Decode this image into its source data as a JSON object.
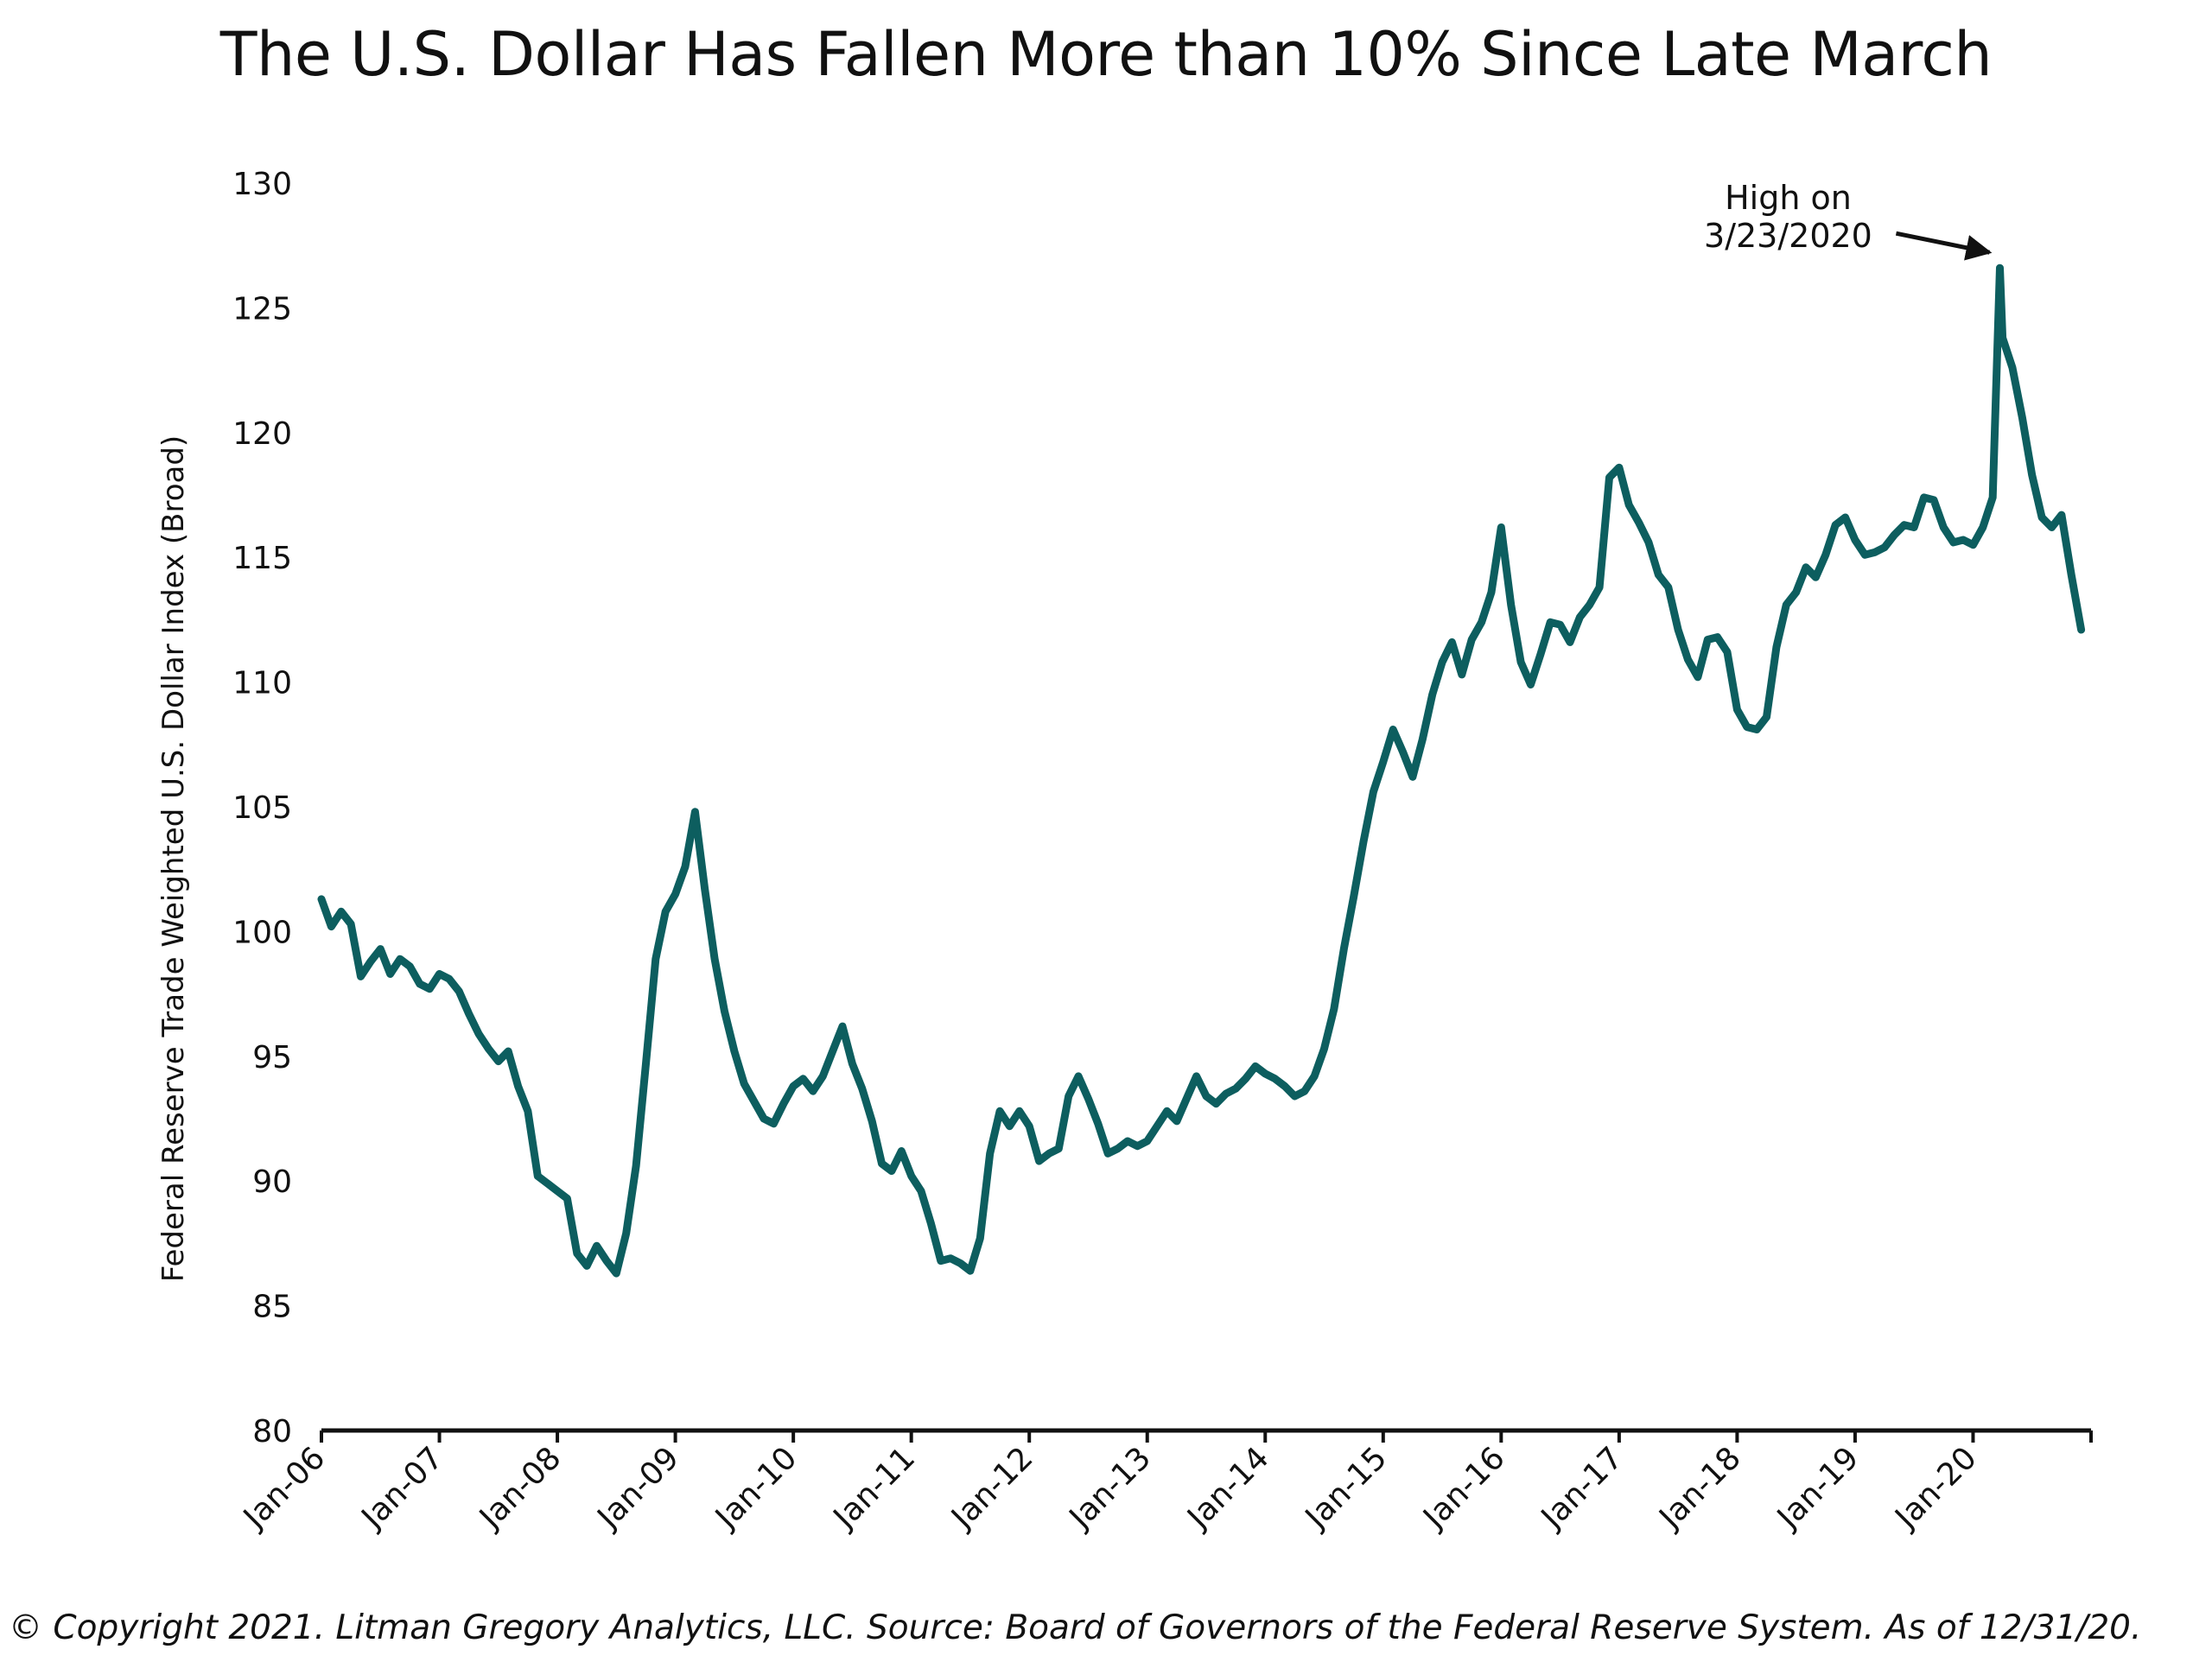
{
  "chart_data": {
    "type": "line",
    "title": "The U.S. Dollar Has Fallen More than 10% Since Late March",
    "ylabel": "Federal Reserve Trade Weighted U.S. Dollar Index (Broad)",
    "xlabel": "",
    "ylim": [
      80,
      130
    ],
    "yticks": [
      80,
      85,
      90,
      95,
      100,
      105,
      110,
      115,
      120,
      125,
      130
    ],
    "xlim": [
      "2006-01",
      "2021-01"
    ],
    "x_tick_labels": [
      "Jan-06",
      "Jan-07",
      "Jan-08",
      "Jan-09",
      "Jan-10",
      "Jan-11",
      "Jan-12",
      "Jan-13",
      "Jan-14",
      "Jan-15",
      "Jan-16",
      "Jan-17",
      "Jan-18",
      "Jan-19",
      "Jan-20"
    ],
    "x_tick_dates": [
      "2006-01",
      "2007-01",
      "2008-01",
      "2009-01",
      "2010-01",
      "2011-01",
      "2012-01",
      "2013-01",
      "2014-01",
      "2015-01",
      "2016-01",
      "2017-01",
      "2018-01",
      "2019-01",
      "2020-01",
      "2021-01"
    ],
    "grid": false,
    "legend": "none",
    "line_color": "#0d5e5f",
    "series": [
      {
        "x": [
          "2006-01",
          "2006-02",
          "2006-03",
          "2006-04",
          "2006-05",
          "2006-06",
          "2006-07",
          "2006-08",
          "2006-09",
          "2006-10",
          "2006-11",
          "2006-12",
          "2007-01",
          "2007-02",
          "2007-03",
          "2007-04",
          "2007-05",
          "2007-06",
          "2007-07",
          "2007-08",
          "2007-09",
          "2007-10",
          "2007-11",
          "2007-12",
          "2008-01",
          "2008-02",
          "2008-03",
          "2008-04",
          "2008-05",
          "2008-06",
          "2008-07",
          "2008-08",
          "2008-09",
          "2008-10",
          "2008-11",
          "2008-12",
          "2009-01",
          "2009-02",
          "2009-03",
          "2009-04",
          "2009-05",
          "2009-06",
          "2009-07",
          "2009-08",
          "2009-09",
          "2009-10",
          "2009-11",
          "2009-12",
          "2010-01",
          "2010-02",
          "2010-03",
          "2010-04",
          "2010-05",
          "2010-06",
          "2010-07",
          "2010-08",
          "2010-09",
          "2010-10",
          "2010-11",
          "2010-12",
          "2011-01",
          "2011-02",
          "2011-03",
          "2011-04",
          "2011-05",
          "2011-06",
          "2011-07",
          "2011-08",
          "2011-09",
          "2011-10",
          "2011-11",
          "2011-12",
          "2012-01",
          "2012-02",
          "2012-03",
          "2012-04",
          "2012-05",
          "2012-06",
          "2012-07",
          "2012-08",
          "2012-09",
          "2012-10",
          "2012-11",
          "2012-12",
          "2013-01",
          "2013-02",
          "2013-03",
          "2013-04",
          "2013-05",
          "2013-06",
          "2013-07",
          "2013-08",
          "2013-09",
          "2013-10",
          "2013-11",
          "2013-12",
          "2014-01",
          "2014-02",
          "2014-03",
          "2014-04",
          "2014-05",
          "2014-06",
          "2014-07",
          "2014-08",
          "2014-09",
          "2014-10",
          "2014-11",
          "2014-12",
          "2015-01",
          "2015-02",
          "2015-03",
          "2015-04",
          "2015-05",
          "2015-06",
          "2015-07",
          "2015-08",
          "2015-09",
          "2015-10",
          "2015-11",
          "2015-12",
          "2016-01",
          "2016-02",
          "2016-03",
          "2016-04",
          "2016-05",
          "2016-06",
          "2016-07",
          "2016-08",
          "2016-09",
          "2016-10",
          "2016-11",
          "2016-12",
          "2017-01",
          "2017-02",
          "2017-03",
          "2017-04",
          "2017-05",
          "2017-06",
          "2017-07",
          "2017-08",
          "2017-09",
          "2017-10",
          "2017-11",
          "2017-12",
          "2018-01",
          "2018-02",
          "2018-03",
          "2018-04",
          "2018-05",
          "2018-06",
          "2018-07",
          "2018-08",
          "2018-09",
          "2018-10",
          "2018-11",
          "2018-12",
          "2019-01",
          "2019-02",
          "2019-03",
          "2019-04",
          "2019-05",
          "2019-06",
          "2019-07",
          "2019-08",
          "2019-09",
          "2019-10",
          "2019-11",
          "2019-12",
          "2020-01",
          "2020-02",
          "2020-03",
          "2020-03-23",
          "2020-04",
          "2020-05",
          "2020-06",
          "2020-07",
          "2020-08",
          "2020-09",
          "2020-10",
          "2020-11",
          "2020-12"
        ],
        "y": [
          101.3,
          100.2,
          100.8,
          100.3,
          98.2,
          98.8,
          99.3,
          98.3,
          98.9,
          98.6,
          97.9,
          97.7,
          98.3,
          98.1,
          97.6,
          96.7,
          95.9,
          95.3,
          94.8,
          95.2,
          93.8,
          92.8,
          90.2,
          89.9,
          89.6,
          89.3,
          87.1,
          86.6,
          87.4,
          86.8,
          86.3,
          87.9,
          90.6,
          94.7,
          98.9,
          100.8,
          101.5,
          102.6,
          104.8,
          101.7,
          98.9,
          96.8,
          95.2,
          93.9,
          93.2,
          92.5,
          92.3,
          93.1,
          93.8,
          94.1,
          93.6,
          94.2,
          95.2,
          96.2,
          94.7,
          93.7,
          92.4,
          90.7,
          90.4,
          91.2,
          90.2,
          89.6,
          88.3,
          86.8,
          86.9,
          86.7,
          86.4,
          87.7,
          91.1,
          92.8,
          92.2,
          92.8,
          92.2,
          90.8,
          91.1,
          91.3,
          93.4,
          94.2,
          93.3,
          92.3,
          91.1,
          91.3,
          91.6,
          91.4,
          91.6,
          92.2,
          92.8,
          92.4,
          93.3,
          94.2,
          93.4,
          93.1,
          93.5,
          93.7,
          94.1,
          94.6,
          94.3,
          94.1,
          93.8,
          93.4,
          93.6,
          94.2,
          95.3,
          96.9,
          99.3,
          101.4,
          103.6,
          105.6,
          106.8,
          108.1,
          107.2,
          106.2,
          107.7,
          109.5,
          110.8,
          111.6,
          110.3,
          111.7,
          112.4,
          113.6,
          116.2,
          113.1,
          110.8,
          109.9,
          111.1,
          112.4,
          112.3,
          111.6,
          112.6,
          113.1,
          113.8,
          118.2,
          118.6,
          117.1,
          116.4,
          115.6,
          114.3,
          113.8,
          112.1,
          110.9,
          110.2,
          111.7,
          111.8,
          111.2,
          108.9,
          108.2,
          108.1,
          108.6,
          111.4,
          113.1,
          113.6,
          114.6,
          114.2,
          115.1,
          116.3,
          116.6,
          115.7,
          115.1,
          115.2,
          115.4,
          115.9,
          116.3,
          116.2,
          117.4,
          117.3,
          116.2,
          115.6,
          115.7,
          115.5,
          116.2,
          117.4,
          126.6,
          123.8,
          122.6,
          120.6,
          118.3,
          116.6,
          116.2,
          116.7,
          114.3,
          112.1
        ]
      }
    ],
    "annotations": [
      {
        "text_line1": "High on",
        "text_line2": "3/23/2020",
        "x": "2020-03-23",
        "y": 126.6
      }
    ]
  },
  "footer": {
    "text": "© Copyright 2021. Litman Gregory Analytics, LLC. Source: Board of Governors of the Federal Reserve System. As of 12/31/20."
  }
}
